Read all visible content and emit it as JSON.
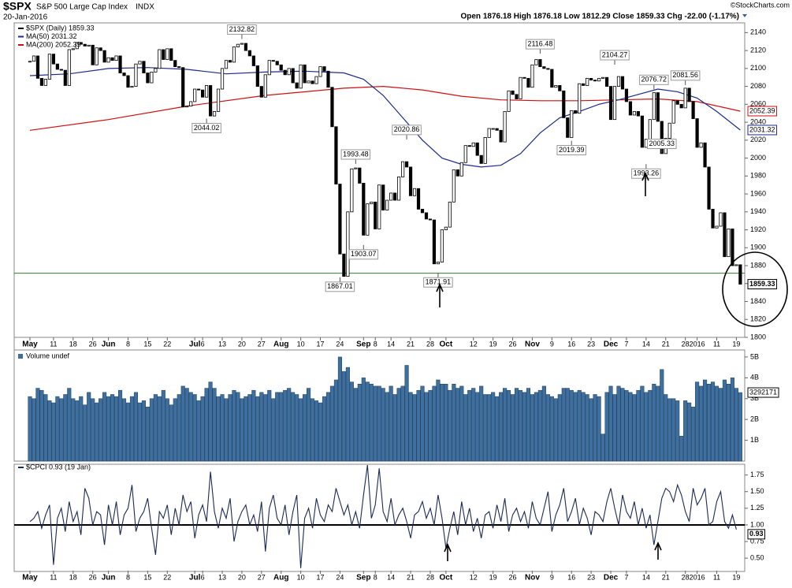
{
  "chart_data": [
    {
      "type": "candlestick",
      "title": "$SPX",
      "subtitle": "S&P 500 Large Cap Index",
      "exchange": "INDX",
      "date": "20-Jan-2016",
      "quote": "Open 1876.18 High 1876.18 Low 1812.29 Close 1859.33 Chg -22.00 (-1.17%)",
      "credit": "©StockCharts.com",
      "series": [
        {
          "name": "$SPX (Daily) 1859.33",
          "color": "#000000",
          "values": [
            2108,
            2114,
            2089,
            2081,
            2088,
            2116,
            2105,
            2099,
            2098,
            2081,
            2121,
            2122,
            2129,
            2127,
            2125,
            2126,
            2104,
            2123,
            2120,
            2107,
            2112,
            2109,
            2114,
            2095,
            2092,
            2079,
            2080,
            2105,
            2108,
            2095,
            2084,
            2096,
            2100,
            2121,
            2110,
            2122,
            2109,
            2102,
            2101,
            2057,
            2058,
            2063,
            2077,
            2076,
            2068,
            2081,
            2047,
            2052,
            2077,
            2100,
            2109,
            2107,
            2124,
            2127,
            2128,
            2120,
            2114,
            2103,
            2080,
            2068,
            2093,
            2109,
            2108,
            2104,
            2098,
            2093,
            2100,
            2084,
            2078,
            2104,
            2084,
            2086,
            2083,
            2091,
            2102,
            2097,
            2079,
            2035,
            1971,
            1893,
            1868,
            1940,
            1988,
            1989,
            1972,
            1914,
            1949,
            1951,
            1921,
            1970,
            1942,
            1953,
            1961,
            1953,
            1979,
            1996,
            1990,
            1958,
            1966,
            1943,
            1939,
            1932,
            1931,
            1882,
            1884,
            1920,
            1923,
            1951,
            1987,
            1980,
            1995,
            2014,
            2013,
            2017,
            2003,
            1994,
            2023,
            2033,
            2033,
            2031,
            2018,
            2052,
            2075,
            2071,
            2066,
            2090,
            2089,
            2079,
            2104,
            2110,
            2102,
            2100,
            2099,
            2079,
            2081,
            2075,
            2045,
            2023,
            2053,
            2050,
            2083,
            2081,
            2089,
            2087,
            2086,
            2089,
            2090,
            2080,
            2043,
            2080,
            2091,
            2077,
            2063,
            2048,
            2052,
            2047,
            2012,
            2021,
            2043,
            2073,
            2041,
            2005,
            2022,
            2039,
            2064,
            2060,
            2056,
            2078,
            2063,
            2044,
            2012,
            2017,
            1990,
            1943,
            1922,
            1924,
            1939,
            1890,
            1921,
            1880,
            1881,
            1859.33
          ]
        },
        {
          "name": "MA(50) 2031.32",
          "color": "#1c2a8c",
          "x": [
            0,
            10,
            20,
            30,
            40,
            50,
            60,
            70,
            80,
            85,
            90,
            95,
            100,
            105,
            110,
            115,
            120,
            125,
            130,
            135,
            140,
            145,
            150,
            155,
            160,
            165,
            170,
            175,
            181
          ],
          "values": [
            2092,
            2094,
            2100,
            2101,
            2099,
            2094,
            2096,
            2097,
            2095,
            2088,
            2070,
            2045,
            2020,
            2000,
            1993,
            1990,
            1992,
            2005,
            2028,
            2045,
            2052,
            2060,
            2065,
            2071,
            2077,
            2074,
            2067,
            2052,
            2031.32
          ]
        },
        {
          "name": "MA(200) 2052.39",
          "color": "#cc1111",
          "x": [
            0,
            20,
            40,
            60,
            80,
            90,
            100,
            110,
            120,
            130,
            140,
            150,
            160,
            170,
            181
          ],
          "values": [
            2031,
            2043,
            2058,
            2070,
            2078,
            2080,
            2076,
            2069,
            2065,
            2064,
            2064,
            2065,
            2066,
            2063,
            2052.39
          ]
        }
      ],
      "ylim": [
        1800,
        2150
      ],
      "yticks": [
        1800,
        1820,
        1840,
        1860,
        1880,
        1900,
        1920,
        1940,
        1960,
        1980,
        2000,
        2020,
        2040,
        2060,
        2080,
        2100,
        2120,
        2140
      ],
      "xlim": [
        0,
        181
      ],
      "xticks": [
        {
          "value": 0,
          "label": "May"
        },
        {
          "value": 6,
          "label": "11"
        },
        {
          "value": 11,
          "label": "18"
        },
        {
          "value": 16,
          "label": "26"
        },
        {
          "value": 20,
          "label": "Jun"
        },
        {
          "value": 25,
          "label": "8"
        },
        {
          "value": 30,
          "label": "15"
        },
        {
          "value": 35,
          "label": "22"
        },
        {
          "value": 42,
          "label": "Jul"
        },
        {
          "value": 44,
          "label": "6"
        },
        {
          "value": 49,
          "label": "13"
        },
        {
          "value": 54,
          "label": "20"
        },
        {
          "value": 59,
          "label": "27"
        },
        {
          "value": 64,
          "label": "Aug"
        },
        {
          "value": 69,
          "label": "10"
        },
        {
          "value": 74,
          "label": "17"
        },
        {
          "value": 79,
          "label": "24"
        },
        {
          "value": 85,
          "label": "Sep"
        },
        {
          "value": 88,
          "label": "8"
        },
        {
          "value": 92,
          "label": "14"
        },
        {
          "value": 97,
          "label": "21"
        },
        {
          "value": 102,
          "label": "28"
        },
        {
          "value": 106,
          "label": "Oct"
        },
        {
          "value": 113,
          "label": "12"
        },
        {
          "value": 118,
          "label": "19"
        },
        {
          "value": 123,
          "label": "26"
        },
        {
          "value": 128,
          "label": "Nov"
        },
        {
          "value": 133,
          "label": "9"
        },
        {
          "value": 138,
          "label": "16"
        },
        {
          "value": 143,
          "label": "23"
        },
        {
          "value": 148,
          "label": "Dec"
        },
        {
          "value": 152,
          "label": "7"
        },
        {
          "value": 157,
          "label": "14"
        },
        {
          "value": 162,
          "label": "21"
        },
        {
          "value": 167,
          "label": "28"
        },
        {
          "value": 170,
          "label": "2016"
        },
        {
          "value": 175,
          "label": "11"
        },
        {
          "value": 180,
          "label": "19"
        }
      ],
      "annotations": [
        {
          "x": 54,
          "value": 2132.82
        },
        {
          "x": 45,
          "value": 2044.02
        },
        {
          "x": 83,
          "value": 1993.48
        },
        {
          "x": 85,
          "value": 1903.07
        },
        {
          "x": 96,
          "value": 2020.86
        },
        {
          "x": 79,
          "value": 1867.01
        },
        {
          "x": 104,
          "value": 1871.91
        },
        {
          "x": 130,
          "value": 2116.48
        },
        {
          "x": 138,
          "value": 2019.39
        },
        {
          "x": 149,
          "value": 2104.27
        },
        {
          "x": 159,
          "value": 2076.72
        },
        {
          "x": 157,
          "value": 1993.26
        },
        {
          "x": 161,
          "value": 2005.33
        },
        {
          "x": 167,
          "value": 2081.56
        }
      ],
      "support_line": 1871.6,
      "support_color": "#2e7d32"
    },
    {
      "type": "bar",
      "title": "Volume undef",
      "color": "#3e6f9e",
      "values": [
        3.1,
        3.0,
        3.5,
        3.4,
        3.2,
        2.9,
        2.8,
        3.1,
        3.0,
        3.2,
        3.5,
        3.0,
        2.9,
        3.1,
        2.7,
        3.3,
        3.0,
        2.8,
        3.0,
        3.3,
        3.1,
        3.2,
        3.1,
        3.4,
        3.0,
        2.8,
        3.1,
        3.3,
        2.8,
        2.9,
        2.6,
        3.0,
        3.2,
        3.1,
        3.4,
        3.0,
        2.7,
        3.0,
        3.2,
        3.6,
        3.5,
        3.3,
        3.2,
        2.9,
        3.1,
        3.5,
        3.8,
        3.5,
        3.1,
        3.2,
        3.0,
        3.2,
        3.4,
        3.3,
        3.0,
        3.1,
        3.2,
        3.4,
        3.1,
        3.3,
        3.2,
        3.4,
        3.0,
        3.3,
        3.3,
        3.4,
        3.5,
        3.3,
        3.2,
        3.0,
        3.2,
        3.5,
        3.0,
        2.9,
        2.8,
        3.1,
        3.3,
        3.6,
        3.9,
        5.0,
        4.3,
        4.5,
        3.8,
        3.5,
        3.7,
        4.0,
        3.8,
        3.7,
        3.6,
        3.6,
        3.5,
        3.3,
        3.6,
        3.2,
        3.5,
        3.6,
        4.6,
        3.3,
        3.2,
        3.4,
        3.6,
        3.3,
        3.4,
        3.6,
        3.9,
        3.7,
        3.7,
        3.4,
        3.7,
        3.5,
        3.6,
        3.2,
        3.4,
        3.5,
        3.3,
        3.6,
        3.2,
        3.2,
        3.3,
        3.1,
        3.3,
        3.5,
        3.4,
        3.2,
        3.5,
        3.4,
        3.3,
        3.5,
        3.2,
        3.3,
        3.4,
        3.6,
        3.2,
        3.1,
        3.0,
        3.2,
        3.5,
        3.5,
        3.4,
        3.3,
        3.4,
        3.3,
        3.2,
        3.0,
        3.2,
        3.1,
        1.3,
        3.3,
        3.6,
        3.2,
        3.6,
        3.5,
        3.4,
        3.3,
        3.2,
        3.4,
        3.6,
        3.3,
        3.4,
        3.7,
        3.6,
        4.4,
        3.2,
        3.0,
        3.0,
        2.9,
        1.2,
        2.9,
        2.8,
        2.6,
        3.8,
        3.6,
        3.9,
        3.7,
        3.8,
        3.6,
        3.5,
        3.9,
        3.7,
        4.0,
        3.5,
        3.292171
      ],
      "last_value_label": "3292171",
      "ylim": [
        0,
        5.3
      ],
      "yticks": [
        {
          "value": 1,
          "label": "1B"
        },
        {
          "value": 2,
          "label": "2B"
        },
        {
          "value": 3,
          "label": "3B"
        },
        {
          "value": 4,
          "label": "4B"
        },
        {
          "value": 5,
          "label": "5B"
        }
      ]
    },
    {
      "type": "line",
      "title": "$CPCI 0.93 (19 Jan)",
      "color": "#1b2a55",
      "values": [
        1.05,
        1.1,
        1.2,
        0.95,
        1.15,
        1.3,
        0.4,
        1.1,
        1.25,
        0.9,
        1.35,
        1.05,
        1.2,
        0.85,
        1.55,
        1.4,
        1.0,
        1.2,
        1.15,
        0.7,
        1.3,
        1.0,
        1.35,
        0.85,
        1.15,
        1.25,
        1.6,
        0.9,
        1.1,
        1.2,
        1.4,
        0.95,
        0.55,
        1.2,
        1.1,
        1.3,
        0.85,
        1.25,
        1.0,
        1.45,
        1.2,
        1.35,
        0.8,
        1.15,
        1.3,
        1.05,
        1.8,
        1.2,
        0.95,
        1.25,
        1.1,
        1.4,
        0.75,
        1.05,
        1.2,
        1.3,
        1.0,
        1.15,
        0.9,
        1.35,
        0.6,
        1.25,
        1.45,
        1.1,
        1.0,
        1.3,
        0.85,
        1.2,
        1.45,
        0.35,
        1.1,
        1.25,
        0.95,
        1.4,
        1.15,
        1.05,
        1.3,
        1.2,
        1.55,
        1.35,
        1.15,
        1.3,
        1.0,
        1.2,
        0.95,
        1.45,
        1.9,
        1.1,
        1.3,
        1.85,
        1.2,
        1.05,
        1.4,
        1.0,
        1.15,
        1.25,
        1.05,
        0.8,
        1.15,
        1.2,
        1.35,
        1.1,
        1.25,
        1.0,
        1.45,
        1.1,
        0.65,
        0.95,
        1.2,
        0.85,
        1.35,
        1.0,
        1.25,
        0.9,
        1.1,
        0.8,
        1.15,
        1.2,
        0.95,
        1.3,
        1.05,
        1.4,
        0.9,
        1.15,
        1.25,
        1.05,
        1.2,
        0.95,
        1.35,
        1.1,
        1.0,
        1.25,
        1.5,
        0.9,
        1.15,
        1.3,
        1.55,
        1.05,
        1.2,
        1.4,
        1.0,
        1.25,
        1.1,
        0.85,
        1.2,
        1.15,
        1.05,
        1.35,
        1.55,
        1.25,
        1.0,
        1.45,
        1.2,
        1.1,
        1.35,
        1.0,
        1.25,
        0.95,
        1.15,
        0.7,
        1.05,
        1.4,
        1.55,
        1.5,
        1.35,
        1.6,
        1.45,
        1.2,
        1.05,
        1.55,
        1.3,
        1.4,
        1.55,
        1.0,
        1.05,
        1.35,
        1.5,
        1.05,
        0.95,
        1.15,
        0.93
      ],
      "reference_line": 1,
      "ylim": [
        0.3,
        1.9
      ],
      "yticks": [
        {
          "value": 0.5,
          "label": "0.50"
        },
        {
          "value": 0.75,
          "label": "0.75"
        },
        {
          "value": 1,
          "label": "1.00"
        },
        {
          "value": 1.25,
          "label": "1.25"
        },
        {
          "value": 1.5,
          "label": "1.50"
        },
        {
          "value": 1.75,
          "label": "1.75"
        }
      ]
    }
  ]
}
